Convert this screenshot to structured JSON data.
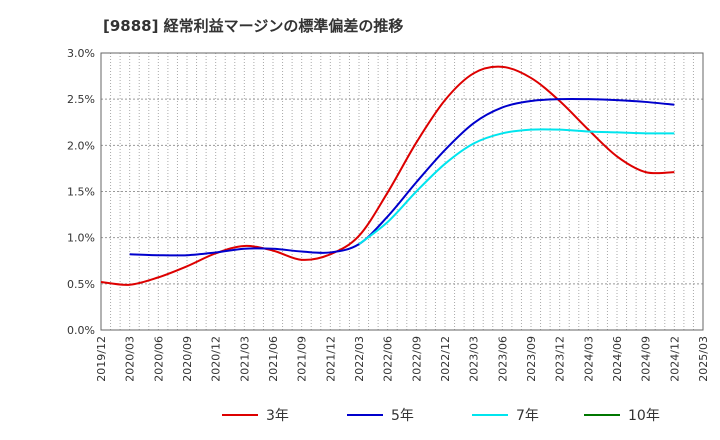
{
  "chart_data": {
    "type": "line",
    "title": "[9888]  経常利益マージンの標準偏差の推移",
    "xlabel": "",
    "ylabel": "",
    "x": [
      "2019/12",
      "2020/03",
      "2020/06",
      "2020/09",
      "2020/12",
      "2021/03",
      "2021/06",
      "2021/09",
      "2021/12",
      "2022/03",
      "2022/06",
      "2022/09",
      "2022/12",
      "2023/03",
      "2023/06",
      "2023/09",
      "2023/12",
      "2024/03",
      "2024/06",
      "2024/09",
      "2024/12",
      "2025/03"
    ],
    "ylim": [
      0,
      3.0
    ],
    "yticks": [
      "0.0%",
      "0.5%",
      "1.0%",
      "1.5%",
      "2.0%",
      "2.5%",
      "3.0%"
    ],
    "grid": true,
    "legend_position": "bottom",
    "series": [
      {
        "name": "3年",
        "color": "#dd0000",
        "values": [
          0.52,
          0.49,
          0.57,
          0.69,
          0.83,
          0.91,
          0.86,
          0.76,
          0.82,
          1.02,
          1.49,
          2.03,
          2.49,
          2.78,
          2.85,
          2.73,
          2.48,
          2.17,
          1.88,
          1.71,
          1.71,
          null
        ]
      },
      {
        "name": "5年",
        "color": "#0000cc",
        "values": [
          null,
          0.82,
          0.81,
          0.81,
          0.84,
          0.88,
          0.88,
          0.85,
          0.84,
          0.93,
          1.23,
          1.6,
          1.95,
          2.24,
          2.41,
          2.48,
          2.5,
          2.5,
          2.49,
          2.47,
          2.44,
          null
        ]
      },
      {
        "name": "7年",
        "color": "#00e5ee",
        "values": [
          null,
          null,
          null,
          null,
          null,
          null,
          null,
          null,
          null,
          0.93,
          1.17,
          1.5,
          1.8,
          2.02,
          2.13,
          2.17,
          2.17,
          2.15,
          2.14,
          2.13,
          2.13,
          null
        ]
      },
      {
        "name": "10年",
        "color": "#007700",
        "values": [
          null,
          null,
          null,
          null,
          null,
          null,
          null,
          null,
          null,
          null,
          null,
          null,
          null,
          null,
          null,
          null,
          null,
          null,
          null,
          null,
          null,
          null
        ]
      }
    ]
  }
}
